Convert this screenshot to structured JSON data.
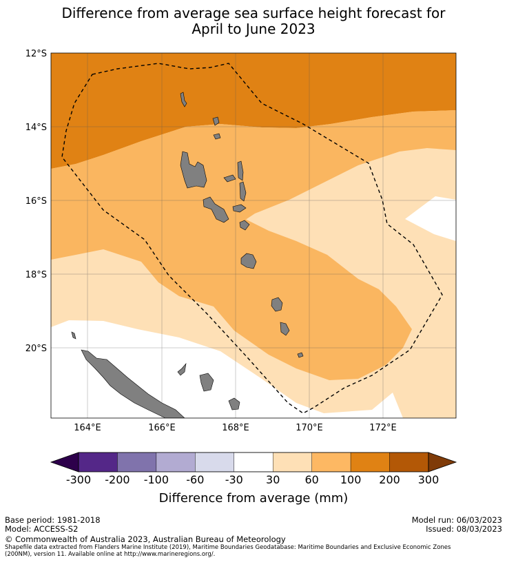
{
  "title": {
    "line1": "Difference from average sea surface height forecast for",
    "line2": "April to June 2023"
  },
  "map": {
    "lat_labels": [
      "12°S",
      "14°S",
      "16°S",
      "18°S",
      "20°S"
    ],
    "lon_labels": [
      "164°E",
      "166°E",
      "168°E",
      "170°E",
      "172°E"
    ],
    "colors": {
      "band_200_100": "#e08214",
      "band_100_60": "#fab660",
      "band_60_30": "#fee0b6",
      "band_30_neg30": "#ffffff",
      "land": "#808080",
      "eez_line": "#000000"
    }
  },
  "colorbar": {
    "label": "Difference from average (mm)",
    "ticks": [
      "-300",
      "-200",
      "-100",
      "-60",
      "-30",
      "30",
      "60",
      "100",
      "200",
      "300"
    ],
    "colors": [
      "#2d004b",
      "#542788",
      "#8073ac",
      "#b2abd2",
      "#d8daeb",
      "#ffffff",
      "#fee0b6",
      "#fdb863",
      "#e08214",
      "#b35806",
      "#7f3b08"
    ]
  },
  "footer": {
    "base_period": "Base period: 1981-2018",
    "model": "Model: ACCESS-S2",
    "model_run": "Model run: 06/03/2023",
    "issued": "Issued: 08/03/2023",
    "copyright": "© Commonwealth of Australia 2023, Australian Bureau of Meteorology",
    "source_line1": "Shapefile data extracted from Flanders Marine Institute (2019), Maritime Boundaries Geodatabase: Maritime Boundaries and Exclusive Economic Zones",
    "source_line2": "(200NM), version 11. Available online at http://www.marineregions.org/."
  }
}
